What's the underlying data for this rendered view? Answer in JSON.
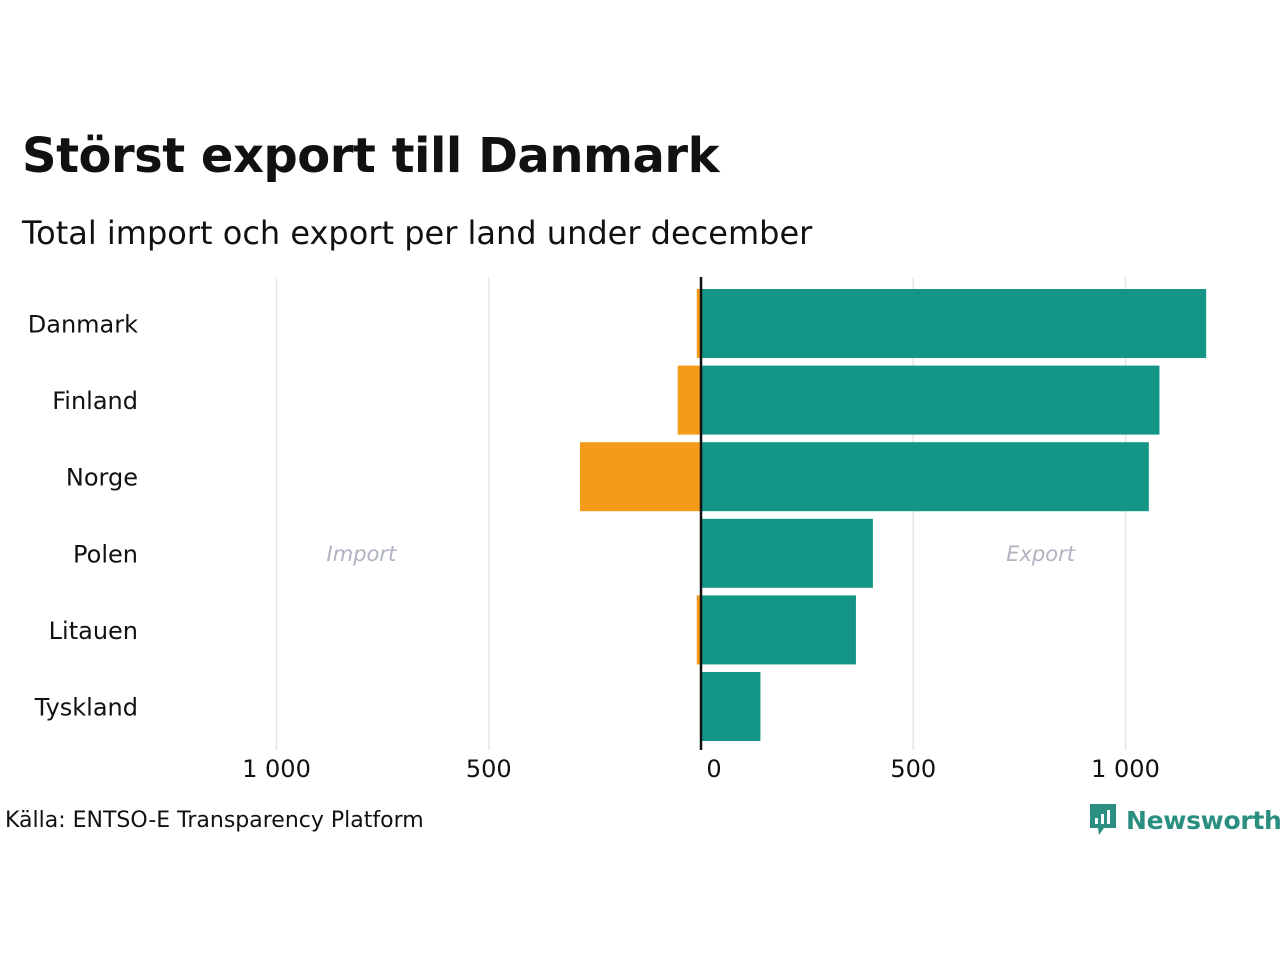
{
  "title": "Störst export till Danmark",
  "subtitle": "Total import och export per land under december",
  "source": "Källa: ENTSO-E Transparency Platform",
  "brand": {
    "name": "Newsworthy",
    "icon": "newsworthy-logo-icon",
    "color": "#2a8f80"
  },
  "colors": {
    "import": "#f49c19",
    "export": "#149687",
    "grid": "#e6e6e6",
    "zero_line": "#111111",
    "annotation": "#b0b3c0"
  },
  "chart_data": {
    "type": "bar",
    "orientation": "horizontal",
    "categories": [
      "Danmark",
      "Finland",
      "Norge",
      "Polen",
      "Litauen",
      "Tyskland"
    ],
    "series": [
      {
        "name": "Import",
        "values": [
          -10,
          -55,
          -285,
          0,
          -10,
          0
        ]
      },
      {
        "name": "Export",
        "values": [
          1190,
          1080,
          1055,
          405,
          365,
          140
        ]
      }
    ],
    "xlim": [
      -1000,
      1300
    ],
    "ticks": [
      {
        "value": -1000,
        "label": "1 000"
      },
      {
        "value": -500,
        "label": "500"
      },
      {
        "value": 0,
        "label": "0"
      },
      {
        "value": 500,
        "label": "500"
      },
      {
        "value": 1000,
        "label": "1 000"
      }
    ],
    "annotations": [
      {
        "text": "Import",
        "x": -800
      },
      {
        "text": "Export",
        "x": 800
      }
    ],
    "grid": true
  }
}
